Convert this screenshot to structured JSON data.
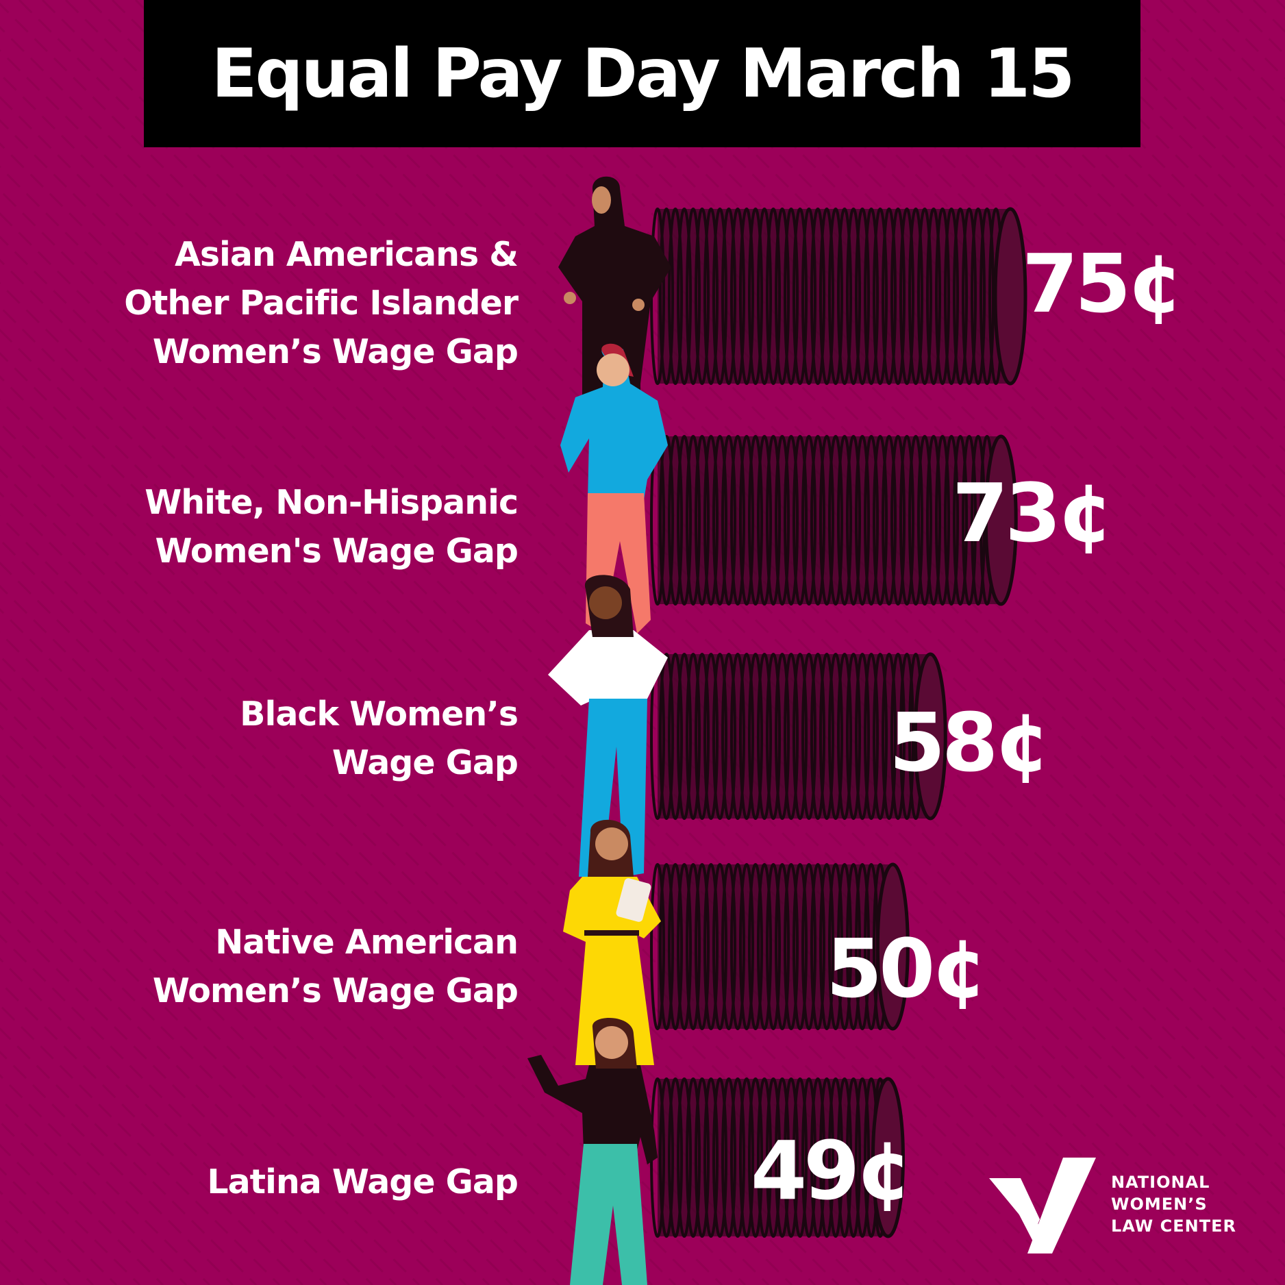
{
  "header": {
    "title": "Equal Pay Day March 15"
  },
  "colors": {
    "background": "#9c0059",
    "title_bar": "#000000",
    "text": "#ffffff",
    "coin_ink": "#1a0710"
  },
  "chart_data": {
    "type": "bar",
    "orientation": "horizontal",
    "unit": "¢",
    "categories": [
      "Asian Americans & Other Pacific Islander Women’s Wage Gap",
      "White, Non-Hispanic Women's Wage Gap",
      "Black Women’s Wage Gap",
      "Native American Women’s Wage Gap",
      "Latina Wage Gap"
    ],
    "values": [
      75,
      73,
      58,
      50,
      49
    ],
    "value_labels": [
      "75¢",
      "73¢",
      "58¢",
      "50¢",
      "49¢"
    ],
    "label_lines": [
      [
        "Asian Americans &",
        "Other Pacific Islander",
        "Women’s Wage Gap"
      ],
      [
        "White, Non-Hispanic",
        "Women's Wage Gap"
      ],
      [
        "Black Women’s",
        "Wage Gap"
      ],
      [
        "Native American",
        "Women’s Wage Gap"
      ],
      [
        "Latina Wage Gap"
      ]
    ],
    "illustrations": [
      "woman-in-hijab-icon",
      "woman-in-blue-top-icon",
      "woman-in-white-shirt-icon",
      "woman-in-yellow-dress-icon",
      "woman-in-teal-pants-icon"
    ],
    "bar_style": "stacked-coins",
    "grid": false,
    "legend": "none"
  },
  "footer": {
    "logo_icon": "nwlc-checkmark-logo-icon",
    "org_lines": [
      "NATIONAL",
      "WOMEN’S",
      "LAW CENTER"
    ]
  }
}
